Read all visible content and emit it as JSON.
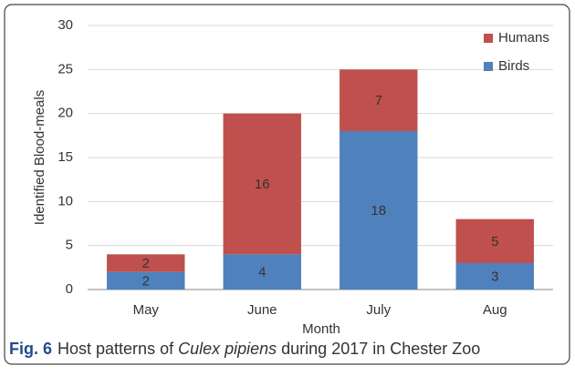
{
  "chart_data": {
    "type": "stacked_bar",
    "categories": [
      "May",
      "June",
      "July",
      "Aug"
    ],
    "series": [
      {
        "name": "Birds",
        "color": "#4f81bd",
        "values": [
          2,
          4,
          18,
          3
        ]
      },
      {
        "name": "Humans",
        "color": "#c0504d",
        "values": [
          2,
          16,
          7,
          5
        ]
      }
    ],
    "ylim": [
      0,
      30
    ],
    "yticks": [
      0,
      5,
      10,
      15,
      20,
      25,
      30
    ],
    "grid": true,
    "y_label": "Identified Blood-meals",
    "x_label": "Month",
    "legend": "top-right"
  },
  "caption": {
    "label": "Fig. 6",
    "text_before": "Host patterns of ",
    "species": "Culex pipiens",
    "text_after": " during 2017 in Chester Zoo"
  }
}
